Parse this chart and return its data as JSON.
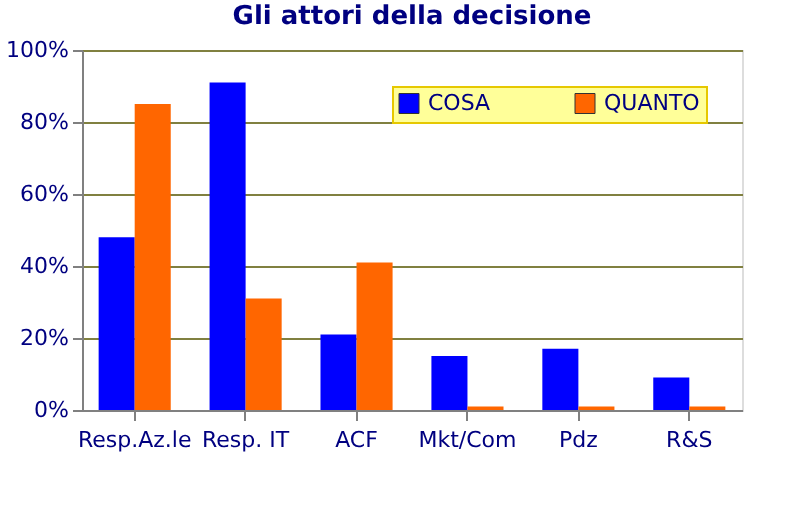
{
  "chart_data": {
    "type": "bar",
    "title": "Gli attori della decisione",
    "categories": [
      "Resp.Az.le",
      "Resp. IT",
      "ACF",
      "Mkt/Com",
      "Pdz",
      "R&S"
    ],
    "series": [
      {
        "name": "COSA",
        "color": "#0000ff",
        "values": [
          48,
          91,
          21,
          15,
          17,
          9
        ]
      },
      {
        "name": "QUANTO",
        "color": "#ff6600",
        "values": [
          85,
          31,
          41,
          1,
          1,
          1
        ]
      }
    ],
    "ylim": [
      0,
      100
    ],
    "yticks": [
      {
        "value": 0,
        "label": "0%"
      },
      {
        "value": 20,
        "label": "20%"
      },
      {
        "value": 40,
        "label": "40%"
      },
      {
        "value": 60,
        "label": "60%"
      },
      {
        "value": 80,
        "label": "80%"
      },
      {
        "value": 100,
        "label": "100%"
      }
    ],
    "grid": "y",
    "legend": "top right"
  }
}
